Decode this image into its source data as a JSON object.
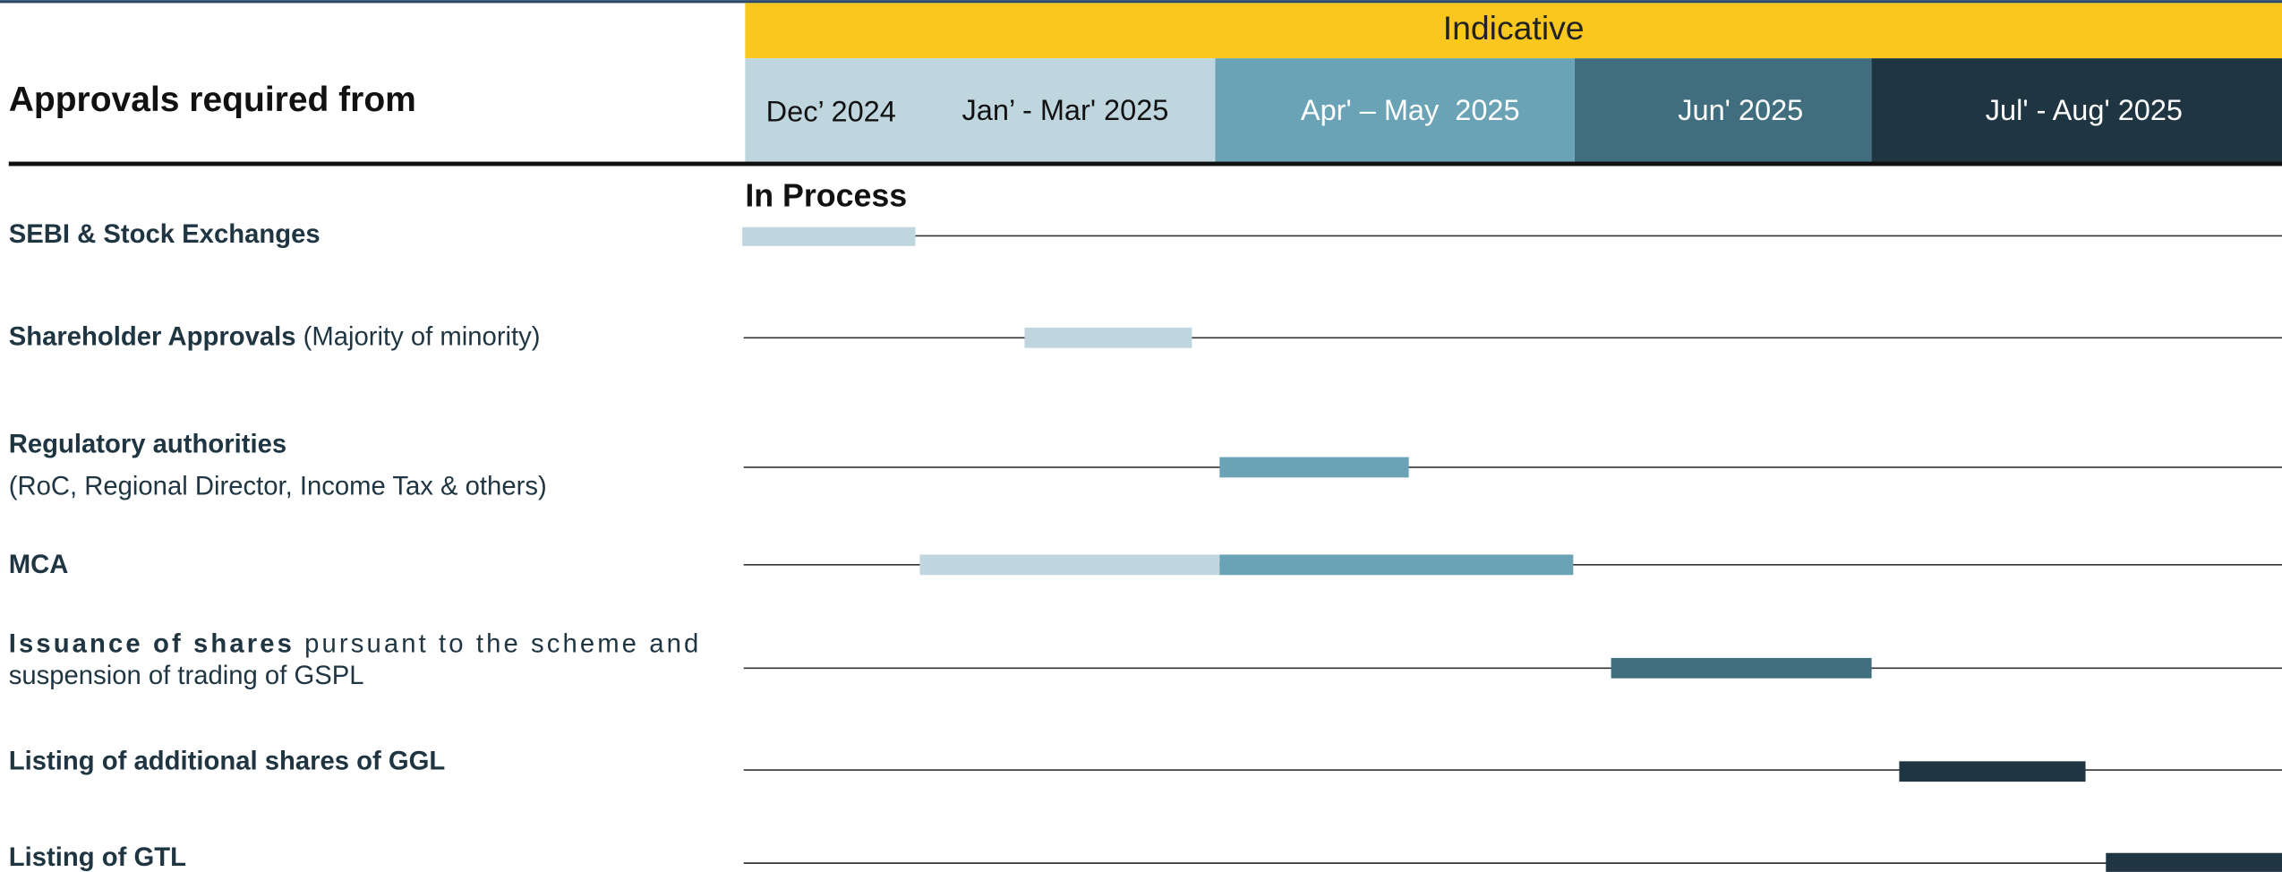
{
  "header": {
    "indicative": "Indicative",
    "approvals_title": "Approvals required from",
    "periods": [
      "Dec’ 2024",
      "Jan’ - Mar' 2025",
      "Apr' – May  2025",
      "Jun' 2025",
      "Jul' - Aug' 2025"
    ]
  },
  "status": "In Process",
  "rows": [
    {
      "bold": "SEBI & Stock Exchanges"
    },
    {
      "bold": "Shareholder Approvals",
      "rest": "(Majority of minority)"
    },
    {
      "bold": "Regulatory authorities",
      "line2": "(RoC, Regional Director, Income Tax & others)"
    },
    {
      "bold": "MCA"
    },
    {
      "bold": "Issuance of shares",
      "rest": "pursuant to the scheme and",
      "line2": "suspension of trading of GSPL"
    },
    {
      "bold": "Listing of additional shares of GGL"
    },
    {
      "bold": "Listing of GTL"
    }
  ]
}
